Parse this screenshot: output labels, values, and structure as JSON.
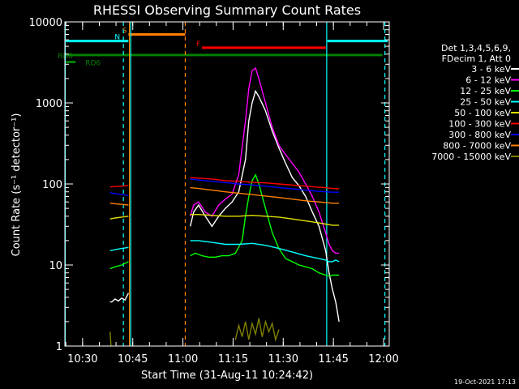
{
  "chart_data": {
    "type": "line",
    "title": "RHESSI Observing Summary Count Rates",
    "xlabel": "Start Time (31-Aug-11 10:24:42)",
    "ylabel": "Count Rate (s⁻¹ detector⁻¹)",
    "x_unit": "minutes after 10:24:42",
    "xlim": [
      0,
      97
    ],
    "ylim": [
      1,
      10000
    ],
    "yscale": "log",
    "x_ticks": [
      {
        "value": 5.3,
        "label": "10:30"
      },
      {
        "value": 20.3,
        "label": "10:45"
      },
      {
        "value": 35.3,
        "label": "11:00"
      },
      {
        "value": 50.3,
        "label": "11:15"
      },
      {
        "value": 65.3,
        "label": "11:30"
      },
      {
        "value": 80.3,
        "label": "11:45"
      },
      {
        "value": 95.3,
        "label": "12:00"
      }
    ],
    "y_ticks": [
      {
        "value": 1,
        "label": "1"
      },
      {
        "value": 10,
        "label": "10"
      },
      {
        "value": 100,
        "label": "100"
      },
      {
        "value": 1000,
        "label": "1000"
      },
      {
        "value": 10000,
        "label": "10000"
      }
    ],
    "legend": {
      "placement": "right",
      "header": [
        "Det 1,3,4,5,6,9,",
        "FDecim 1, Att 0"
      ],
      "entries": [
        {
          "name": "3 - 6 keV",
          "color": "#ffffff"
        },
        {
          "name": "6 - 12 keV",
          "color": "#ff00ff"
        },
        {
          "name": "12 - 25 keV",
          "color": "#00ff00"
        },
        {
          "name": "25 - 50 keV",
          "color": "#00ffff"
        },
        {
          "name": "50 - 100 keV",
          "color": "#e0e000"
        },
        {
          "name": "100 - 300 keV",
          "color": "#ff0000"
        },
        {
          "name": "300 - 800 keV",
          "color": "#0000ff"
        },
        {
          "name": "800 - 7000 keV",
          "color": "#ff8000"
        },
        {
          "name": "7000 - 15000 keV",
          "color": "#808000"
        }
      ]
    },
    "flags": [
      {
        "label": "RD0",
        "color": "#008000",
        "x_start": 0.3,
        "x_end": 95,
        "y": 3900
      },
      {
        "label": "RD6",
        "color": "#008000",
        "x_start": 0.3,
        "x_end": 3.2,
        "y": 3200
      },
      {
        "label": "S",
        "color": "#ff8000",
        "x_start": 19,
        "x_end": 36,
        "y": 7000
      },
      {
        "label": "F",
        "color": "#ff0000",
        "x_start": 41,
        "x_end": 78,
        "y": 4800
      },
      {
        "label": "N",
        "color": "#00ffff",
        "x_start": 17,
        "x_end": 19,
        "y": 5800
      }
    ],
    "background_levels": [
      {
        "name": "cyan-left",
        "color": "#00ffff",
        "x_start": 0.3,
        "x_end": 17.5,
        "y": 5800
      },
      {
        "name": "cyan-right",
        "color": "#00ffff",
        "x_start": 78.5,
        "x_end": 96.5,
        "y": 5800
      }
    ],
    "vertical_lines": [
      {
        "x": 0.1,
        "color": "#00ffff",
        "style": "solid"
      },
      {
        "x": 17.5,
        "color": "#00ffff",
        "style": "dashed"
      },
      {
        "x": 19.3,
        "color": "#ff8000",
        "style": "solid"
      },
      {
        "x": 19.7,
        "color": "#00ffff",
        "style": "solid"
      },
      {
        "x": 36,
        "color": "#ff8000",
        "style": "dashed"
      },
      {
        "x": 78.3,
        "color": "#00ffff",
        "style": "solid"
      },
      {
        "x": 95.7,
        "color": "#00ffff",
        "style": "dashed"
      }
    ],
    "series": [
      {
        "name": "3 - 6 keV",
        "color": "#ffffff",
        "segments": [
          {
            "x": [
              13.5,
              14,
              15,
              16,
              17,
              18,
              19
            ],
            "y": [
              3.5,
              3.5,
              3.8,
              3.6,
              3.9,
              3.7,
              4.5
            ]
          },
          {
            "x": [
              37.5,
              38.5,
              40,
              42,
              44,
              46,
              48,
              50,
              52,
              54,
              55,
              56,
              57,
              58,
              60,
              62,
              64,
              66,
              68,
              70,
              72,
              74,
              76,
              78,
              79,
              80,
              81,
              82
            ],
            "y": [
              30,
              45,
              55,
              40,
              30,
              40,
              50,
              60,
              80,
              200,
              600,
              1000,
              1400,
              1200,
              800,
              450,
              280,
              180,
              120,
              95,
              70,
              45,
              30,
              15,
              8,
              5,
              3.5,
              2
            ]
          }
        ]
      },
      {
        "name": "6 - 12 keV",
        "color": "#ff00ff",
        "segments": [
          {
            "x": [
              37.5,
              38.5,
              40,
              42,
              44,
              46,
              48,
              50,
              52,
              54,
              55,
              56,
              57,
              58,
              60,
              62,
              64,
              66,
              68,
              70,
              72,
              74,
              76,
              78,
              79,
              80,
              81,
              82
            ],
            "y": [
              40,
              55,
              60,
              45,
              40,
              55,
              65,
              75,
              130,
              600,
              1500,
              2500,
              2700,
              2000,
              1000,
              500,
              300,
              230,
              180,
              140,
              100,
              70,
              45,
              25,
              18,
              15,
              14,
              14
            ]
          }
        ]
      },
      {
        "name": "12 - 25 keV",
        "color": "#00ff00",
        "segments": [
          {
            "x": [
              13.5,
              15,
              17,
              19
            ],
            "y": [
              9,
              9.5,
              10,
              11
            ]
          },
          {
            "x": [
              37.5,
              39,
              41,
              43,
              45,
              47,
              49,
              51,
              53,
              54,
              55,
              56,
              57,
              58,
              60,
              62,
              64,
              66,
              68,
              70,
              72,
              74,
              76,
              78,
              79,
              80,
              81,
              82
            ],
            "y": [
              13,
              14,
              13,
              12.5,
              12.5,
              13,
              13,
              14,
              20,
              40,
              70,
              110,
              130,
              100,
              50,
              25,
              16,
              12,
              11,
              10,
              9.5,
              9,
              8,
              7.5,
              7.3,
              7.5,
              7.5,
              7.5
            ]
          }
        ]
      },
      {
        "name": "25 - 50 keV",
        "color": "#00ffff",
        "segments": [
          {
            "x": [
              13.5,
              15,
              17,
              19
            ],
            "y": [
              15,
              15.5,
              16,
              16.5
            ]
          },
          {
            "x": [
              37.5,
              40,
              44,
              48,
              52,
              56,
              60,
              64,
              68,
              72,
              76,
              78,
              79,
              80,
              81,
              82
            ],
            "y": [
              20,
              20,
              19,
              18,
              18,
              18.5,
              17.5,
              16,
              14.5,
              13,
              12,
              11.5,
              11,
              11,
              11.5,
              11
            ]
          }
        ]
      },
      {
        "name": "50 - 100 keV",
        "color": "#e0e000",
        "segments": [
          {
            "x": [
              13.5,
              15,
              17,
              19
            ],
            "y": [
              37,
              38,
              39,
              40
            ]
          },
          {
            "x": [
              37.5,
              40,
              44,
              48,
              52,
              56,
              60,
              64,
              68,
              72,
              76,
              78,
              80,
              82
            ],
            "y": [
              42,
              42,
              41,
              40,
              40,
              41,
              40,
              39,
              37,
              35,
              33,
              32,
              31,
              31
            ]
          }
        ]
      },
      {
        "name": "100 - 300 keV",
        "color": "#ff0000",
        "segments": [
          {
            "x": [
              13.5,
              15,
              17,
              19
            ],
            "y": [
              92,
              93,
              94,
              96
            ]
          },
          {
            "x": [
              37.5,
              40,
              44,
              48,
              52,
              56,
              60,
              64,
              68,
              72,
              76,
              78,
              80,
              82
            ],
            "y": [
              120,
              118,
              115,
              110,
              108,
              105,
              103,
              100,
              97,
              94,
              91,
              90,
              88,
              87
            ]
          }
        ]
      },
      {
        "name": "300 - 800 keV",
        "color": "#0000ff",
        "segments": [
          {
            "x": [
              13.5,
              15,
              17,
              19
            ],
            "y": [
              78,
              76,
              74,
              72
            ]
          },
          {
            "x": [
              37.5,
              40,
              44,
              48,
              52,
              56,
              60,
              64,
              68,
              72,
              76,
              78,
              80,
              82
            ],
            "y": [
              115,
              112,
              108,
              104,
              100,
              97,
              94,
              90,
              87,
              84,
              81,
              80,
              79,
              79
            ]
          }
        ]
      },
      {
        "name": "800 - 7000 keV",
        "color": "#ff8000",
        "segments": [
          {
            "x": [
              13.5,
              15,
              17,
              19
            ],
            "y": [
              58,
              57,
              56,
              55
            ]
          },
          {
            "x": [
              37.5,
              40,
              44,
              48,
              52,
              56,
              60,
              64,
              68,
              72,
              76,
              78,
              80,
              82
            ],
            "y": [
              90,
              88,
              84,
              80,
              77,
              74,
              71,
              68,
              65,
              62,
              60,
              59,
              58,
              58
            ]
          }
        ]
      },
      {
        "name": "7000 - 15000 keV",
        "color": "#808000",
        "segments": [
          {
            "x": [
              13.5,
              13.8
            ],
            "y": [
              1.5,
              1
            ]
          },
          {
            "x": [
              51,
              52,
              53,
              54,
              55,
              56,
              57,
              58,
              59,
              60,
              61,
              62,
              63,
              64
            ],
            "y": [
              1.2,
              1.8,
              1.3,
              2,
              1.2,
              1.9,
              1.4,
              2.2,
              1.3,
              2,
              1.5,
              1.9,
              1.2,
              1.6
            ]
          }
        ]
      }
    ]
  },
  "footer": {
    "timestamp": "19-Oct-2021 17:13"
  }
}
